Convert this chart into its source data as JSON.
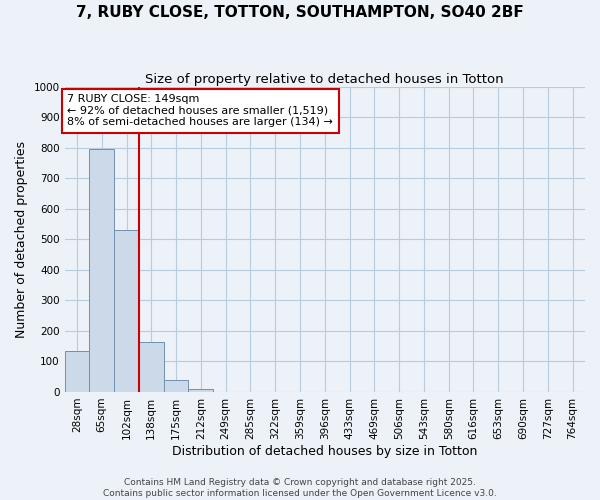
{
  "title": "7, RUBY CLOSE, TOTTON, SOUTHAMPTON, SO40 2BF",
  "subtitle": "Size of property relative to detached houses in Totton",
  "xlabel": "Distribution of detached houses by size in Totton",
  "ylabel": "Number of detached properties",
  "categories": [
    "28sqm",
    "65sqm",
    "102sqm",
    "138sqm",
    "175sqm",
    "212sqm",
    "249sqm",
    "285sqm",
    "322sqm",
    "359sqm",
    "396sqm",
    "433sqm",
    "469sqm",
    "506sqm",
    "543sqm",
    "580sqm",
    "616sqm",
    "653sqm",
    "690sqm",
    "727sqm",
    "764sqm"
  ],
  "values": [
    135,
    795,
    530,
    165,
    40,
    10,
    0,
    0,
    0,
    0,
    0,
    0,
    0,
    0,
    0,
    0,
    0,
    0,
    0,
    0,
    0
  ],
  "bar_color": "#ccd9e8",
  "bar_edge_color": "#7090b0",
  "ylim": [
    0,
    1000
  ],
  "yticks": [
    0,
    100,
    200,
    300,
    400,
    500,
    600,
    700,
    800,
    900,
    1000
  ],
  "grid_color": "#b8cce0",
  "background_color": "#edf2f8",
  "red_line_x": 2.5,
  "annotation_title": "7 RUBY CLOSE: 149sqm",
  "annotation_line1": "← 92% of detached houses are smaller (1,519)",
  "annotation_line2": "8% of semi-detached houses are larger (134) →",
  "annotation_box_color": "#cc0000",
  "footer_line1": "Contains HM Land Registry data © Crown copyright and database right 2025.",
  "footer_line2": "Contains public sector information licensed under the Open Government Licence v3.0.",
  "title_fontsize": 11,
  "subtitle_fontsize": 9.5,
  "axis_label_fontsize": 9,
  "tick_fontsize": 7.5,
  "annotation_fontsize": 8,
  "footer_fontsize": 6.5
}
